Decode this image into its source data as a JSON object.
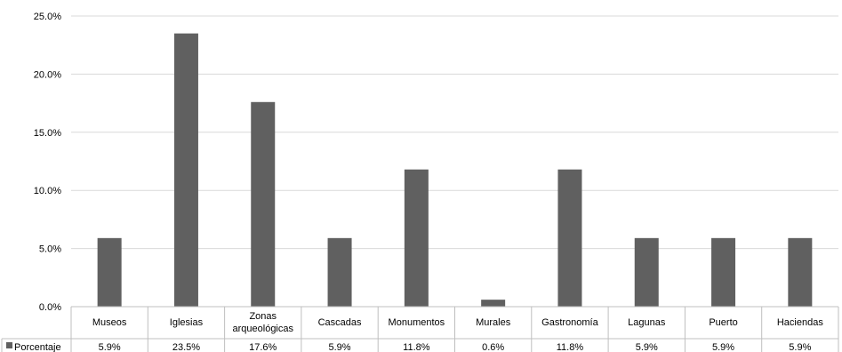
{
  "chart_data": {
    "type": "bar",
    "categories": [
      "Museos",
      "Iglesias",
      "Zonas arqueológicas",
      "Cascadas",
      "Monumentos",
      "Murales",
      "Gastronomía",
      "Lagunas",
      "Puerto",
      "Haciendas"
    ],
    "category_lines": [
      [
        "Museos"
      ],
      [
        "Iglesias"
      ],
      [
        "Zonas",
        "arqueológicas"
      ],
      [
        "Cascadas"
      ],
      [
        "Monumentos"
      ],
      [
        "Murales"
      ],
      [
        "Gastronomía"
      ],
      [
        "Lagunas"
      ],
      [
        "Puerto"
      ],
      [
        "Haciendas"
      ]
    ],
    "series": [
      {
        "name": "Porcentaje",
        "values": [
          5.9,
          23.5,
          17.6,
          5.9,
          11.8,
          0.6,
          11.8,
          5.9,
          5.9,
          5.9
        ]
      }
    ],
    "value_labels": [
      "5.9%",
      "23.5%",
      "17.6%",
      "5.9%",
      "11.8%",
      "0.6%",
      "11.8%",
      "5.9%",
      "5.9%",
      "5.9%"
    ],
    "ylim": [
      0,
      25
    ],
    "yticks": [
      0,
      5,
      10,
      15,
      20,
      25
    ],
    "ytick_labels": [
      "0.0%",
      "5.0%",
      "10.0%",
      "15.0%",
      "20.0%",
      "25.0%"
    ],
    "grid": true,
    "legend": "data-table",
    "colors": {
      "bar": "#606060",
      "grid": "#d9d9d9",
      "axis": "#bfbfbf"
    }
  }
}
